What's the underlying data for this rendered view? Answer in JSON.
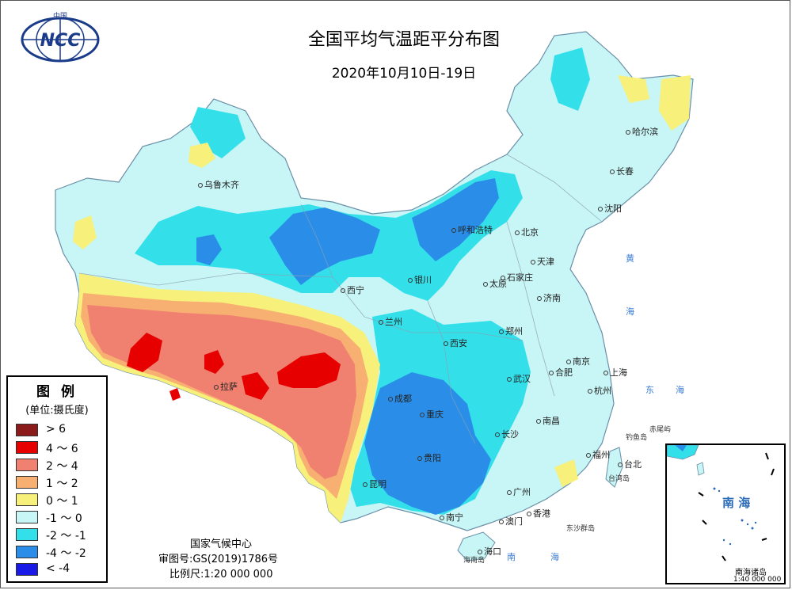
{
  "title": "全国平均气温距平分布图",
  "subtitle": "2020年10月10日-19日",
  "logo": {
    "top_text": "中国",
    "text": "NCC",
    "icon": "ncc-globe-logo"
  },
  "legend": {
    "title": "图 例",
    "unit": "(单位:摄氏度)",
    "items": [
      {
        "label": "> 6",
        "color": "#8b1a1a"
      },
      {
        "label": "4 ～ 6",
        "color": "#e60000"
      },
      {
        "label": "2 ～ 4",
        "color": "#f08070"
      },
      {
        "label": "1 ～ 2",
        "color": "#f7b072"
      },
      {
        "label": "0 ～ 1",
        "color": "#f7f07a"
      },
      {
        "label": "-1 ～ 0",
        "color": "#c8f5f5"
      },
      {
        "label": "-2 ～ -1",
        "color": "#33e0ea"
      },
      {
        "label": "-4 ～ -2",
        "color": "#2a8ee8"
      },
      {
        "label": "< -4",
        "color": "#1a1ae6"
      }
    ]
  },
  "credit": {
    "org": "国家气候中心",
    "map_no": "审图号:GS(2019)1786号",
    "scale": "比例尺:1:20 000 000"
  },
  "inset": {
    "label": "南 海",
    "caption": "南海诸岛",
    "scale": "1:40 000 000"
  },
  "cities": [
    {
      "name": "哈尔滨"
    },
    {
      "name": "长春"
    },
    {
      "name": "沈阳"
    },
    {
      "name": "乌鲁木齐"
    },
    {
      "name": "呼和浩特"
    },
    {
      "name": "北京"
    },
    {
      "name": "天津"
    },
    {
      "name": "石家庄"
    },
    {
      "name": "太原"
    },
    {
      "name": "银川"
    },
    {
      "name": "西宁"
    },
    {
      "name": "兰州"
    },
    {
      "name": "济南"
    },
    {
      "name": "郑州"
    },
    {
      "name": "西安"
    },
    {
      "name": "南京"
    },
    {
      "name": "合肥"
    },
    {
      "name": "上海"
    },
    {
      "name": "杭州"
    },
    {
      "name": "武汉"
    },
    {
      "name": "成都"
    },
    {
      "name": "重庆"
    },
    {
      "name": "拉萨"
    },
    {
      "name": "南昌"
    },
    {
      "name": "长沙"
    },
    {
      "name": "贵阳"
    },
    {
      "name": "福州"
    },
    {
      "name": "台北"
    },
    {
      "name": "昆明"
    },
    {
      "name": "广州"
    },
    {
      "name": "南宁"
    },
    {
      "name": "香港"
    },
    {
      "name": "澳门"
    },
    {
      "name": "海口"
    }
  ],
  "seas": [
    "黄",
    "海",
    "东",
    "海",
    "南",
    "海"
  ],
  "islands": [
    "钓鱼岛",
    "赤尾屿",
    "台湾岛",
    "东沙群岛",
    "海南岛"
  ]
}
